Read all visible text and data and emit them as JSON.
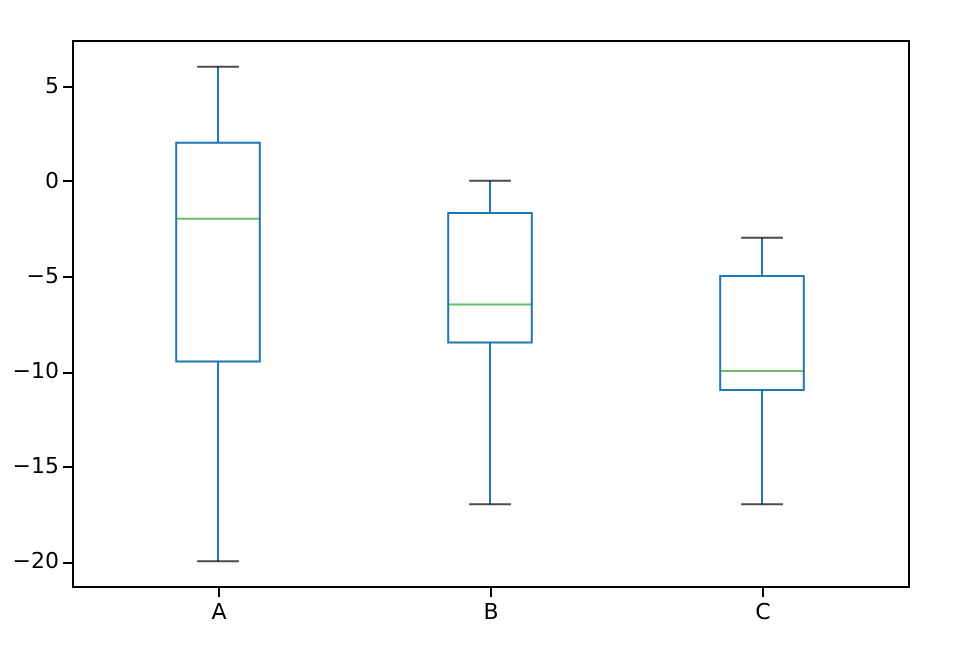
{
  "chart_data": {
    "type": "box",
    "categories": [
      "A",
      "B",
      "C"
    ],
    "series": [
      {
        "color": "#1f77b4",
        "boxes": [
          {
            "low": -20,
            "q1": -9.5,
            "median": -2,
            "q3": 2,
            "high": 6
          },
          {
            "low": -17,
            "q1": -8.5,
            "median": -6.5,
            "q3": -1.7,
            "high": 0
          },
          {
            "low": -17,
            "q1": -11,
            "median": -10,
            "q3": -5,
            "high": -3
          }
        ]
      }
    ],
    "ylim": [
      -21.3,
      7.4
    ],
    "yticks": [
      -20,
      -15,
      -10,
      -5,
      0,
      5
    ],
    "grid": false
  }
}
